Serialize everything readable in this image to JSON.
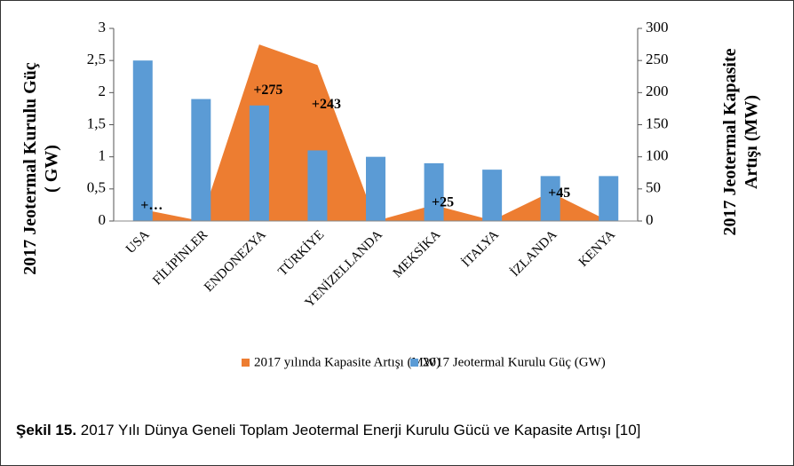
{
  "chart_data": {
    "type": "bar_area_combo",
    "y_axis_title": [
      "2017  Jeotermal Kurulu Güç",
      "( GW)"
    ],
    "y2_axis_title": [
      "2017 Jeotermal Kapasite",
      "Artışı  (MW)"
    ],
    "categories": [
      "USA",
      "FİLİPİNLER",
      "ENDONEZYA",
      "TÜRKİYE",
      "YENİZELLANDA",
      "MEKSİKA",
      "İTALYA",
      "İZLANDA",
      "KENYA"
    ],
    "series": [
      {
        "name": "2017 yılında Kapasite Artışı (MW)",
        "type": "area",
        "axis": "y2",
        "color": "#ed7d31",
        "values": [
          18,
          0,
          275,
          243,
          0,
          25,
          1,
          45,
          0
        ],
        "value_labels": [
          "+…",
          null,
          "+275",
          "+243",
          null,
          "+25",
          null,
          "+45",
          null
        ]
      },
      {
        "name": "2017 Jeotermal Kurulu Güç (GW)",
        "type": "bar",
        "axis": "y",
        "color": "#5b9bd5",
        "values": [
          2.5,
          1.9,
          1.8,
          1.1,
          1.0,
          0.9,
          0.8,
          0.7,
          0.7
        ]
      }
    ],
    "ylim": [
      0,
      3
    ],
    "yticks": [
      0,
      {
        "value": 0.5,
        "label": "0,5"
      },
      1,
      {
        "value": 1.5,
        "label": "1,5"
      },
      2,
      {
        "value": 2.5,
        "label": "2,5"
      },
      3
    ],
    "y2lim": [
      0,
      300
    ],
    "y2ticks": [
      0,
      50,
      100,
      150,
      200,
      250,
      300
    ],
    "legend": "bottom",
    "caption_label": "Şekil 15.",
    "caption_text": "2017 Yılı Dünya Geneli Toplam Jeotermal Enerji Kurulu Gücü ve Kapasite Artışı [10]"
  }
}
